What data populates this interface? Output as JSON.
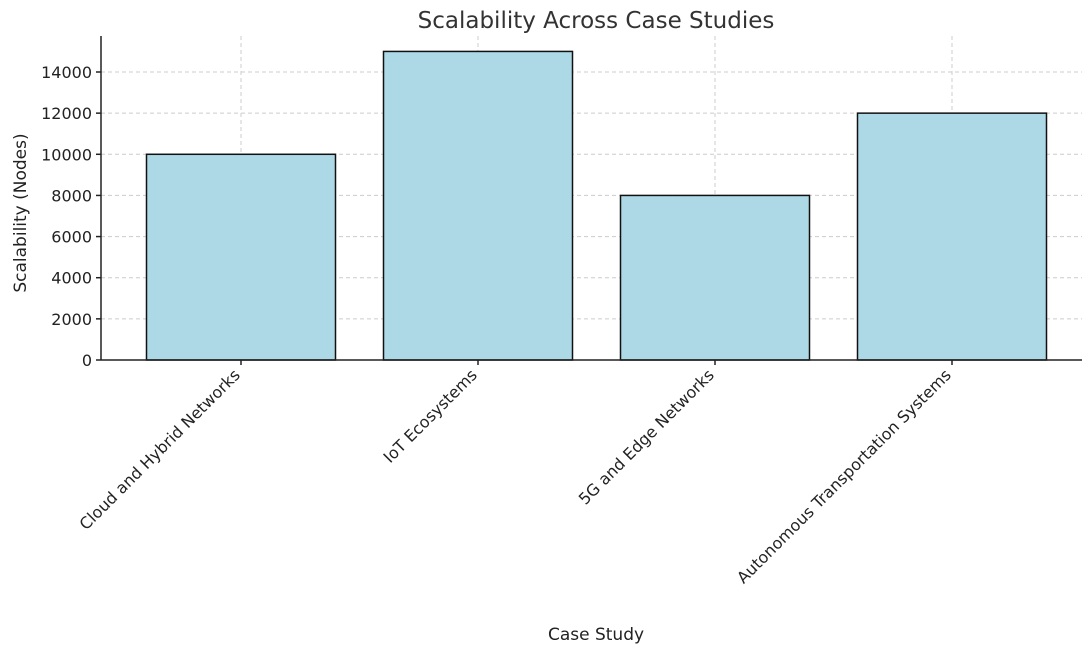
{
  "chart_data": {
    "type": "bar",
    "title": "Scalability Across Case Studies",
    "xlabel": "Case Study",
    "ylabel": "Scalability (Nodes)",
    "categories": [
      "Cloud and Hybrid Networks",
      "IoT Ecosystems",
      "5G and Edge Networks",
      "Autonomous Transportation Systems"
    ],
    "values": [
      10000,
      15000,
      8000,
      12000
    ],
    "ylim": [
      0,
      15750
    ],
    "yticks": [
      0,
      2000,
      4000,
      6000,
      8000,
      10000,
      12000,
      14000
    ],
    "grid": true,
    "bar_color": "#add8e6",
    "edge_color": "#111111"
  }
}
